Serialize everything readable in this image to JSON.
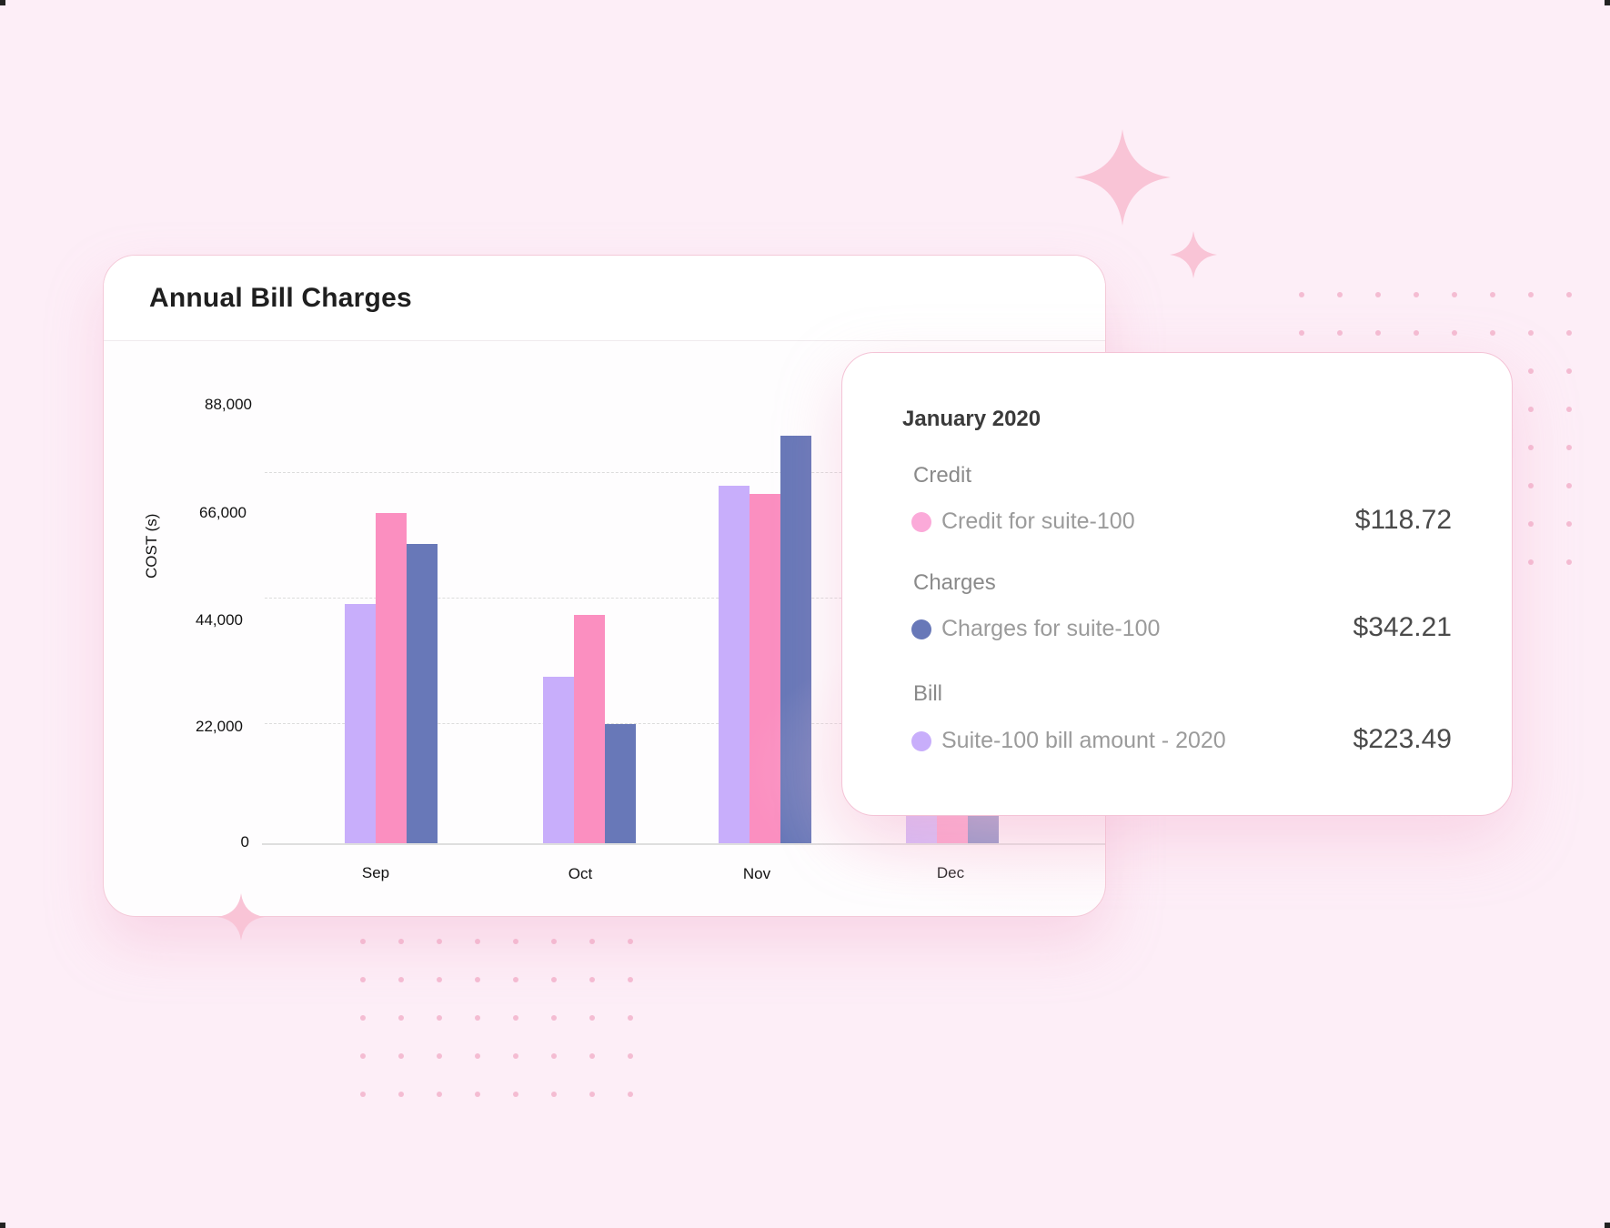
{
  "card": {
    "title": "Annual Bill Charges"
  },
  "chart": {
    "y_axis_title": "COST (s)",
    "y_ticks": [
      "88,000",
      "66,000",
      "44,000",
      "22,000",
      "0"
    ],
    "x_ticks": [
      "Sep",
      "Oct",
      "Nov",
      "Dec"
    ]
  },
  "colors": {
    "bill": "#c8aefb",
    "credit": "#fb8fc0",
    "charges": "#6878b8",
    "sparkle": "#f9c4d6",
    "background": "#fdeef7"
  },
  "tooltip": {
    "title": "January 2020",
    "sections": [
      {
        "heading": "Credit",
        "label": "Credit for suite-100",
        "amount": "$118.72",
        "dot_color": "#fbaad9"
      },
      {
        "heading": "Charges",
        "label": "Charges for suite-100",
        "amount": "$342.21",
        "dot_color": "#6878b8"
      },
      {
        "heading": "Bill",
        "label": "Suite-100 bill amount - 2020",
        "amount": "$223.49",
        "dot_color": "#c8aefb"
      }
    ]
  },
  "chart_data": {
    "type": "bar",
    "title": "Annual Bill Charges",
    "xlabel": "",
    "ylabel": "COST (s)",
    "categories": [
      "Sep",
      "Oct",
      "Nov",
      "Dec"
    ],
    "series": [
      {
        "name": "Bill",
        "color": "#c8aefb",
        "values": [
          48000,
          33400,
          71800,
          null
        ]
      },
      {
        "name": "Credit",
        "color": "#fb8fc0",
        "values": [
          66300,
          45900,
          70100,
          null
        ]
      },
      {
        "name": "Charges",
        "color": "#6878b8",
        "values": [
          60100,
          24000,
          81800,
          null
        ]
      }
    ],
    "ylim": [
      0,
      88000
    ],
    "y_ticks": [
      0,
      22000,
      44000,
      66000,
      88000
    ],
    "grid": true,
    "legend_position": "tooltip",
    "annotations": [
      {
        "type": "tooltip",
        "title": "January 2020",
        "items": [
          {
            "group": "Credit",
            "label": "Credit for suite-100",
            "value": 118.72
          },
          {
            "group": "Charges",
            "label": "Charges for suite-100",
            "value": 342.21
          },
          {
            "group": "Bill",
            "label": "Suite-100 bill amount - 2020",
            "value": 223.49
          }
        ]
      }
    ]
  }
}
